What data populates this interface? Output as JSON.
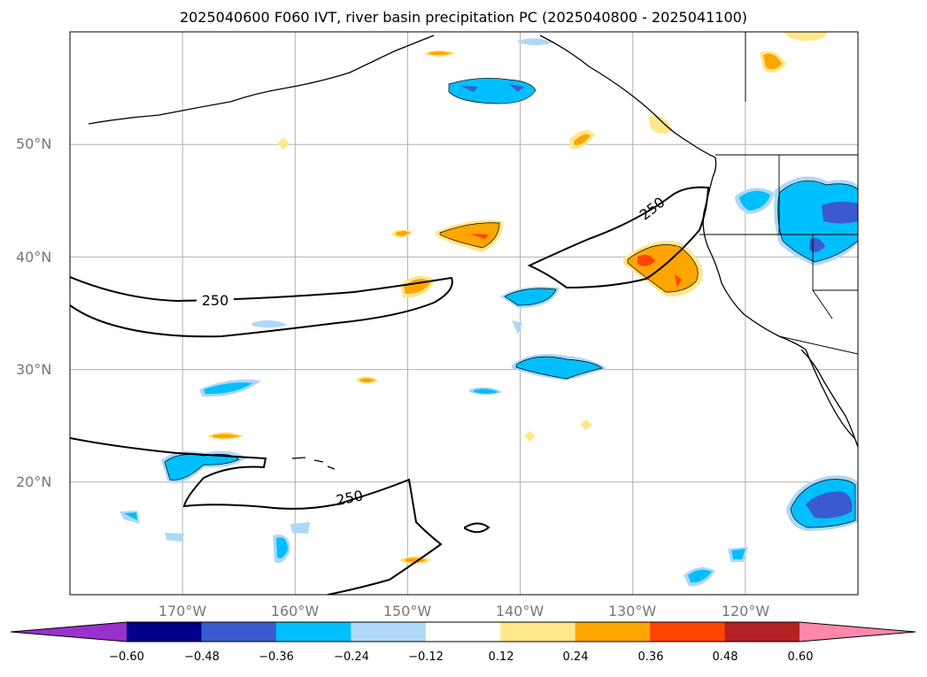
{
  "title": "2025040600 F060 IVT, river basin precipitation PC (2025040800 - 2025041100)",
  "map": {
    "lon_range": [
      -180,
      -110
    ],
    "lat_range": [
      10,
      60
    ],
    "lat_labels": [
      "50°N",
      "40°N",
      "30°N",
      "20°N"
    ],
    "lat_values": [
      50,
      40,
      30,
      20
    ],
    "lon_labels": [
      "170°W",
      "160°W",
      "150°W",
      "140°W",
      "130°W",
      "120°W"
    ],
    "lon_values": [
      -170,
      -160,
      -150,
      -140,
      -130,
      -120
    ],
    "ivt_contour_label": "250",
    "ivt_contour_labels": [
      "250",
      "250",
      "250"
    ]
  },
  "colorbar": {
    "ticks": [
      "−0.60",
      "−0.48",
      "−0.36",
      "−0.24",
      "−0.12",
      "0.12",
      "0.24",
      "0.36",
      "0.48",
      "0.60"
    ],
    "colors": [
      "#9932cc",
      "#00008b",
      "#3a5bd0",
      "#00bfff",
      "#add8f7",
      "#ffffff",
      "#ffe78a",
      "#ffa500",
      "#ff4500",
      "#b22222",
      "#ff88aa"
    ]
  }
}
